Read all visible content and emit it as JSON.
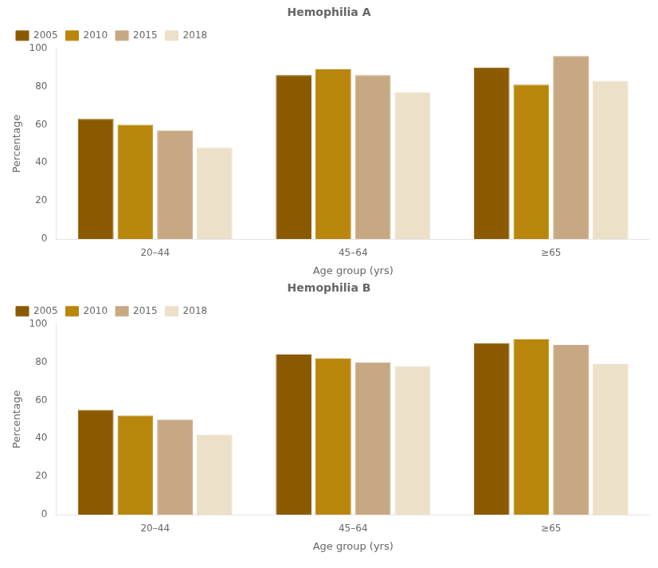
{
  "chart_data": [
    {
      "type": "bar",
      "title": "Hemophilia A",
      "categories": [
        "20–44",
        "45–64",
        "≥65"
      ],
      "series": [
        {
          "name": "2005",
          "color": "#8B5A00",
          "values": [
            63,
            86,
            90
          ]
        },
        {
          "name": "2010",
          "color": "#B8860B",
          "values": [
            60,
            89,
            81
          ]
        },
        {
          "name": "2015",
          "color": "#C8A882",
          "values": [
            57,
            86,
            96
          ]
        },
        {
          "name": "2018",
          "color": "#EDE0C8",
          "values": [
            48,
            77,
            83
          ]
        }
      ],
      "xlabel": "Age group (yrs)",
      "ylabel": "Percentage",
      "ylim": [
        0,
        100
      ],
      "yticks": [
        0,
        20,
        40,
        60,
        80,
        100
      ],
      "grid": false,
      "legend": "upper left"
    },
    {
      "type": "bar",
      "title": "Hemophilia B",
      "categories": [
        "20–44",
        "45–64",
        "≥65"
      ],
      "series": [
        {
          "name": "2005",
          "color": "#8B5A00",
          "values": [
            55,
            84,
            90
          ]
        },
        {
          "name": "2010",
          "color": "#B8860B",
          "values": [
            52,
            82,
            92
          ]
        },
        {
          "name": "2015",
          "color": "#C8A882",
          "values": [
            50,
            80,
            89
          ]
        },
        {
          "name": "2018",
          "color": "#EDE0C8",
          "values": [
            42,
            78,
            79
          ]
        }
      ],
      "xlabel": "Age group (yrs)",
      "ylabel": "Percentage",
      "ylim": [
        0,
        100
      ],
      "yticks": [
        0,
        20,
        40,
        60,
        80,
        100
      ],
      "grid": false,
      "legend": "upper left"
    }
  ]
}
